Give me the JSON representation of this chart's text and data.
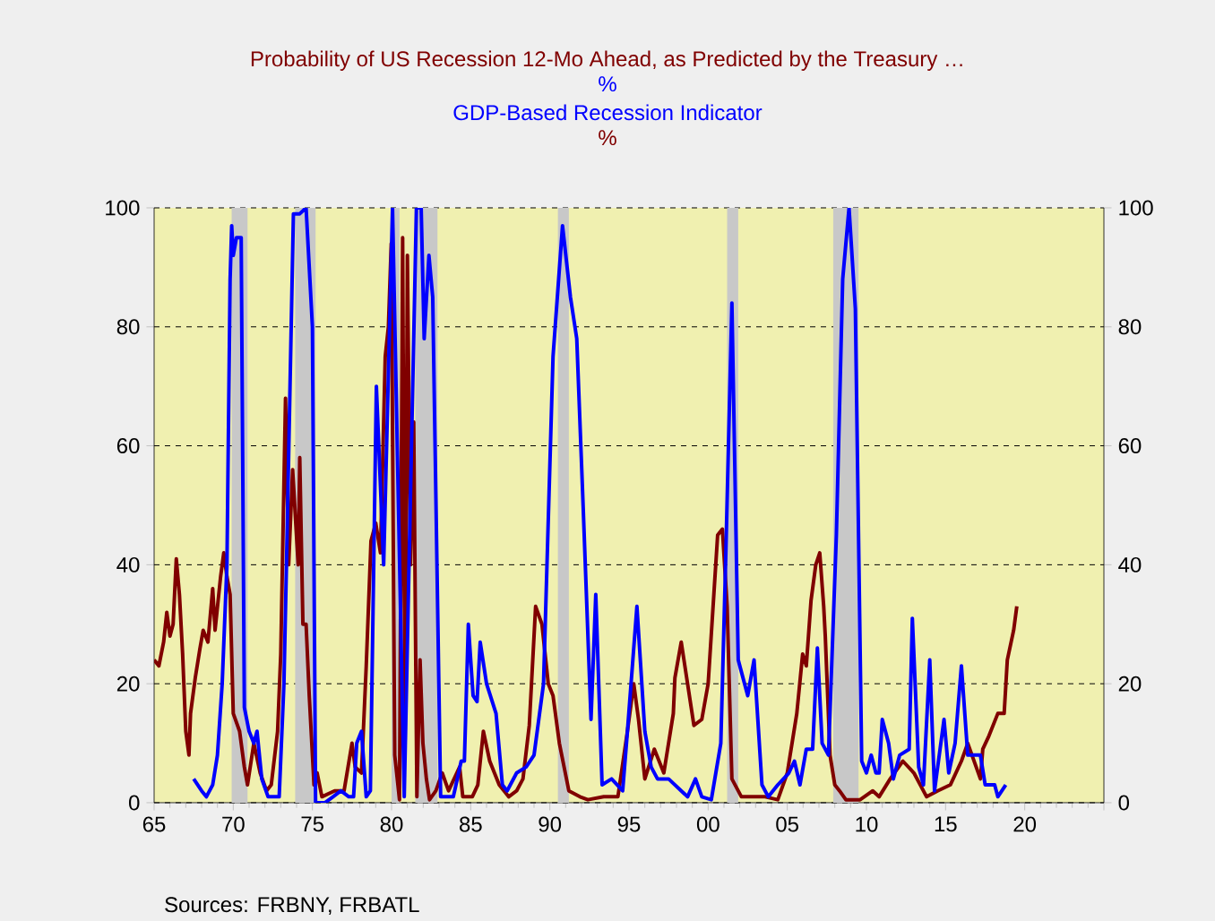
{
  "chart_data": {
    "type": "line",
    "xlim": [
      1965,
      2025
    ],
    "xticks": [
      {
        "value": 1965,
        "label": "65"
      },
      {
        "value": 1970,
        "label": "70"
      },
      {
        "value": 1975,
        "label": "75"
      },
      {
        "value": 1980,
        "label": "80"
      },
      {
        "value": 1985,
        "label": "85"
      },
      {
        "value": 1990,
        "label": "90"
      },
      {
        "value": 1995,
        "label": "95"
      },
      {
        "value": 2000,
        "label": "00"
      },
      {
        "value": 2005,
        "label": "05"
      },
      {
        "value": 2010,
        "label": "10"
      },
      {
        "value": 2015,
        "label": "15"
      },
      {
        "value": 2020,
        "label": "20"
      },
      {
        "value": 2025,
        "label": null
      }
    ],
    "ylim": [
      0,
      100
    ],
    "yticks": [
      0,
      20,
      40,
      60,
      80,
      100
    ],
    "y2lim": [
      0,
      100
    ],
    "y2ticks": [
      0,
      20,
      40,
      60,
      80,
      100
    ],
    "grid": "y",
    "legend": "top",
    "annotations": [
      "%",
      "%",
      "Sources:  FRBNY, FRBATL"
    ],
    "bands": [
      {
        "axis": "x",
        "from": 1969.9,
        "to": 1970.9,
        "color": "#c8c8c8"
      },
      {
        "axis": "x",
        "from": 1973.9,
        "to": 1975.2,
        "color": "#c8c8c8"
      },
      {
        "axis": "x",
        "from": 1980.0,
        "to": 1980.5,
        "color": "#c8c8c8"
      },
      {
        "axis": "x",
        "from": 1981.5,
        "to": 1982.9,
        "color": "#c8c8c8"
      },
      {
        "axis": "x",
        "from": 1990.5,
        "to": 1991.2,
        "color": "#c8c8c8"
      },
      {
        "axis": "x",
        "from": 2001.2,
        "to": 2001.9,
        "color": "#c8c8c8"
      },
      {
        "axis": "x",
        "from": 2007.9,
        "to": 2009.5,
        "color": "#c8c8c8"
      }
    ],
    "series": [
      {
        "name": "Probability of US Recession 12-Mo Ahead, as Predicted by the Treasury …",
        "color": "#800000",
        "x": [
          1965.0,
          1965.3,
          1965.6,
          1965.8,
          1966.0,
          1966.2,
          1966.4,
          1966.6,
          1966.8,
          1967.0,
          1967.2,
          1967.3,
          1967.6,
          1967.9,
          1968.1,
          1968.4,
          1968.7,
          1968.85,
          1969.2,
          1969.4,
          1969.6,
          1969.8,
          1970.0,
          1970.4,
          1970.7,
          1970.9,
          1971.3,
          1971.7,
          1972.1,
          1972.4,
          1972.8,
          1973.0,
          1973.3,
          1973.5,
          1973.75,
          1974.1,
          1974.2,
          1974.4,
          1974.6,
          1974.8,
          1975.1,
          1975.3,
          1975.6,
          1976.4,
          1977.0,
          1977.5,
          1977.7,
          1978.1,
          1978.4,
          1978.7,
          1979.0,
          1979.3,
          1979.6,
          1979.8,
          1979.98,
          1980.2,
          1980.5,
          1980.7,
          1980.85,
          1981.0,
          1981.2,
          1981.4,
          1981.6,
          1981.8,
          1981.98,
          1982.2,
          1982.4,
          1982.8,
          1983.2,
          1983.6,
          1984.3,
          1984.5,
          1985.1,
          1985.45,
          1985.8,
          1986.2,
          1986.8,
          1987.4,
          1987.9,
          1988.3,
          1988.7,
          1989.1,
          1989.5,
          1989.9,
          1990.2,
          1990.6,
          1991.2,
          1991.9,
          1992.4,
          1993.4,
          1994.3,
          1994.9,
          1995.3,
          1995.6,
          1996.0,
          1996.6,
          1997.2,
          1997.8,
          1997.9,
          1998.3,
          1998.7,
          1999.1,
          1999.6,
          2000.0,
          2000.6,
          2000.9,
          2001.2,
          2001.5,
          2002.1,
          2002.9,
          2003.6,
          2004.4,
          2005.0,
          2005.6,
          2005.97,
          2006.2,
          2006.5,
          2006.8,
          2007.05,
          2007.3,
          2007.4,
          2007.7,
          2008.0,
          2008.3,
          2008.7,
          2009.6,
          2010.4,
          2010.8,
          2011.5,
          2012.3,
          2013.0,
          2013.8,
          2014.5,
          2015.3,
          2016.0,
          2016.4,
          2016.8,
          2017.2,
          2017.35,
          2017.7,
          2018.3,
          2018.7,
          2018.9,
          2019.3,
          2019.5
        ],
        "values": [
          24,
          23,
          27,
          32,
          28,
          30,
          41,
          35,
          25,
          12,
          8,
          15,
          21,
          26,
          29,
          27,
          36,
          29,
          38,
          42,
          38,
          35,
          15,
          12,
          6,
          3,
          10,
          5,
          2,
          3,
          12,
          25,
          68,
          40,
          56,
          40,
          58,
          30,
          30,
          18,
          3,
          5,
          1,
          2,
          2,
          10,
          6,
          5,
          23,
          44,
          47,
          42,
          75,
          80,
          94,
          8,
          0.5,
          95,
          10,
          92,
          40,
          64,
          1,
          24,
          10,
          4,
          0.5,
          2,
          5,
          2,
          6,
          1,
          1,
          3,
          12,
          7,
          3,
          1,
          2,
          4,
          13,
          33,
          30,
          20,
          18,
          10,
          2,
          1,
          0.5,
          1,
          1,
          12,
          20,
          14,
          4,
          9,
          5,
          15,
          21,
          27,
          20,
          13,
          14,
          20,
          45,
          46,
          33,
          4,
          1,
          1,
          1,
          0.5,
          5,
          15,
          25,
          23,
          34,
          40,
          42,
          33,
          28,
          8,
          3,
          2,
          0.5,
          0.5,
          2,
          1,
          4,
          7,
          5,
          1,
          2,
          3,
          7,
          10,
          7,
          4,
          9,
          11,
          15,
          15,
          24,
          29,
          33
        ]
      },
      {
        "name": "GDP-Based Recession Indicator",
        "color": "#0000ff",
        "x": [
          1967.5,
          1968.0,
          1968.3,
          1968.7,
          1969.0,
          1969.3,
          1969.6,
          1969.8,
          1969.9,
          1970.0,
          1970.2,
          1970.5,
          1970.7,
          1971.0,
          1971.3,
          1971.5,
          1971.8,
          1972.2,
          1972.5,
          1972.9,
          1973.2,
          1973.4,
          1973.8,
          1974.2,
          1974.6,
          1975.0,
          1975.2,
          1975.8,
          1976.3,
          1976.8,
          1977.3,
          1977.6,
          1977.8,
          1978.1,
          1978.4,
          1978.66,
          1979.04,
          1979.5,
          1980.06,
          1980.8,
          1981.57,
          1981.87,
          1982.06,
          1982.36,
          1982.6,
          1983.1,
          1983.9,
          1984.4,
          1984.6,
          1984.85,
          1985.15,
          1985.4,
          1985.6,
          1986.0,
          1986.6,
          1987.0,
          1987.3,
          1987.9,
          1988.5,
          1989.0,
          1989.6,
          1990.2,
          1990.8,
          1991.3,
          1991.7,
          1992.1,
          1992.6,
          1992.9,
          1993.3,
          1993.9,
          1994.6,
          1994.9,
          1995.5,
          1996.0,
          1996.4,
          1996.8,
          1997.5,
          1998.3,
          1998.7,
          1999.2,
          1999.6,
          2000.2,
          2000.8,
          2001.1,
          2001.5,
          2001.9,
          2002.5,
          2002.9,
          2003.4,
          2003.8,
          2004.4,
          2005.1,
          2005.45,
          2005.8,
          2006.2,
          2006.6,
          2006.9,
          2007.2,
          2007.6,
          2008.1,
          2008.5,
          2008.9,
          2009.3,
          2009.7,
          2010.0,
          2010.3,
          2010.6,
          2010.8,
          2011.0,
          2011.4,
          2011.7,
          2012.1,
          2012.7,
          2012.9,
          2013.3,
          2013.6,
          2014.0,
          2014.3,
          2014.9,
          2015.2,
          2015.6,
          2016.0,
          2016.4,
          2016.8,
          2017.2,
          2017.5,
          2018.1,
          2018.3,
          2018.8
        ],
        "values": [
          4,
          2,
          1,
          3,
          8,
          20,
          40,
          88,
          97,
          92,
          95,
          95,
          16,
          12,
          10,
          12,
          4,
          1,
          1,
          1,
          20,
          45,
          99,
          99,
          100,
          80,
          0,
          0,
          1,
          2,
          1,
          1,
          10,
          12,
          1,
          2,
          70,
          40,
          100,
          1,
          100,
          100,
          78,
          92,
          85,
          1,
          1,
          7,
          7,
          30,
          18,
          17,
          27,
          20,
          15,
          3,
          2,
          5,
          6,
          8,
          20,
          75,
          97,
          85,
          78,
          50,
          14,
          35,
          3,
          4,
          2,
          12,
          33,
          12,
          6,
          4,
          4,
          2,
          1,
          4,
          1,
          0.5,
          10,
          40,
          84,
          24,
          18,
          24,
          3,
          1,
          3,
          5,
          7,
          3,
          9,
          9,
          26,
          10,
          8,
          45,
          88,
          100,
          83,
          7,
          5,
          8,
          5,
          5,
          14,
          10,
          4,
          8,
          9,
          31,
          6,
          3,
          24,
          2,
          14,
          5,
          10,
          23,
          8,
          8,
          8,
          3,
          3,
          1,
          3
        ]
      }
    ]
  }
}
